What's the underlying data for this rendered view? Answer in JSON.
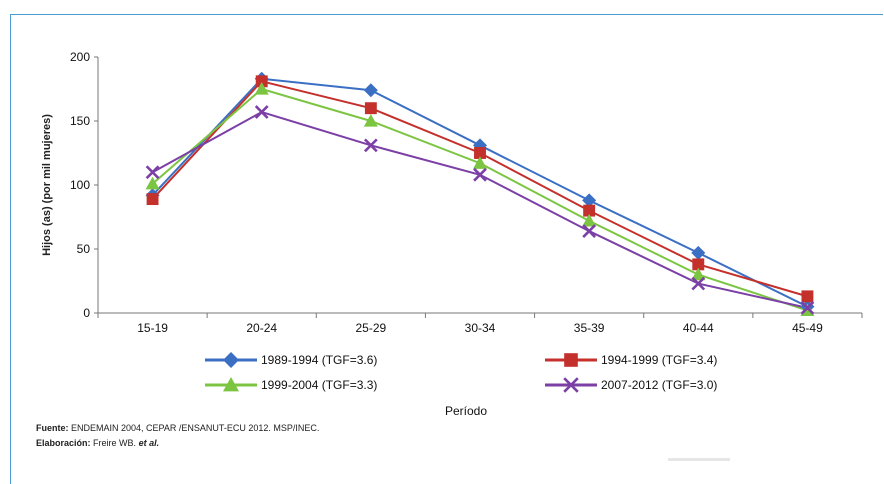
{
  "chart_data": {
    "type": "line",
    "title": "",
    "xlabel": "Período",
    "ylabel": "Hijos (as) (por mil mujeres)",
    "ylim": [
      0,
      200
    ],
    "yticks": [
      0,
      50,
      100,
      150,
      200
    ],
    "categories": [
      "15-19",
      "20-24",
      "25-29",
      "30-34",
      "35-39",
      "40-44",
      "45-49"
    ],
    "legend_position": "bottom",
    "series": [
      {
        "name": "1989-1994 (TGF=3.6)",
        "color": "#3a6fc4",
        "marker": "diamond",
        "values": [
          92,
          183,
          174,
          131,
          88,
          47,
          5
        ]
      },
      {
        "name": "1994-1999 (TGF=3.4)",
        "color": "#c4302b",
        "marker": "square",
        "values": [
          89,
          181,
          160,
          125,
          80,
          38,
          13
        ]
      },
      {
        "name": "1999-2004 (TGF=3.3)",
        "color": "#7cc542",
        "marker": "triangle",
        "values": [
          101,
          175,
          150,
          117,
          72,
          30,
          2
        ]
      },
      {
        "name": "2007-2012 (TGF=3.0)",
        "color": "#7b3fa6",
        "marker": "x",
        "values": [
          110,
          157,
          131,
          108,
          64,
          23,
          4
        ]
      }
    ]
  },
  "source": {
    "fuente_label": "Fuente:",
    "fuente_text": "ENDEMAIN 2004, CEPAR /ENSANUT-ECU 2012. MSP/INEC.",
    "elaboracion_label": "Elaboración:",
    "elaboracion_text": "Freire WB.",
    "elaboracion_etal": "et al."
  }
}
